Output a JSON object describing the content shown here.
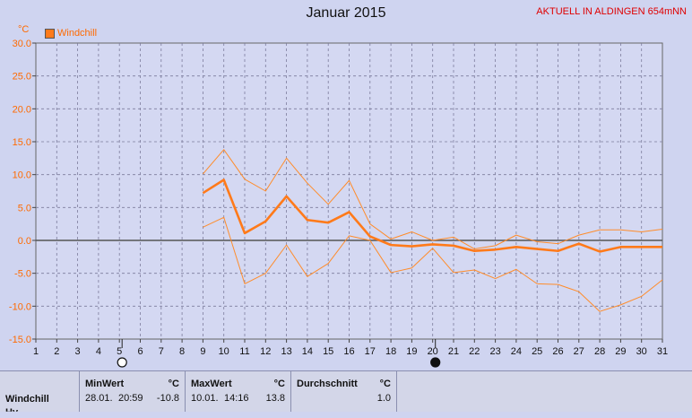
{
  "chart_data": {
    "type": "line",
    "title": "Januar 2015",
    "station": "AKTUELL IN ALDINGEN 654mNN",
    "unit": "°C",
    "ylim": [
      -15,
      30
    ],
    "yticks": [
      "30.0",
      "25.0",
      "20.0",
      "15.0",
      "10.0",
      "5.0",
      "0.0",
      "-5.0",
      "-10.0",
      "-15.0"
    ],
    "x": [
      1,
      2,
      3,
      4,
      5,
      6,
      7,
      8,
      9,
      10,
      11,
      12,
      13,
      14,
      15,
      16,
      17,
      18,
      19,
      20,
      21,
      22,
      23,
      24,
      25,
      26,
      27,
      28,
      29,
      30,
      31
    ],
    "legend": "Windchill",
    "series": [
      {
        "name": "Windchill",
        "role": "mean",
        "x": [
          9,
          10,
          11,
          12,
          13,
          14,
          15,
          16,
          17,
          18,
          19,
          20,
          21,
          22,
          23,
          24,
          25,
          26,
          27,
          28,
          29,
          30,
          31
        ],
        "values": [
          7.2,
          9.2,
          1.1,
          2.9,
          6.7,
          3.1,
          2.7,
          4.3,
          0.6,
          -0.7,
          -0.9,
          -0.6,
          -0.8,
          -1.6,
          -1.4,
          -1.0,
          -1.3,
          -1.6,
          -0.5,
          -1.7,
          -1.0,
          -1.0,
          -1.0
        ]
      },
      {
        "role": "max",
        "x": [
          9,
          10,
          11,
          12,
          13,
          14,
          15,
          16,
          17,
          18,
          19,
          20,
          21,
          22,
          23,
          24,
          25,
          26,
          27,
          28,
          29,
          30,
          31
        ],
        "values": [
          10.1,
          13.8,
          9.3,
          7.5,
          12.5,
          8.7,
          5.5,
          9.1,
          2.5,
          0.2,
          1.3,
          0.0,
          0.5,
          -1.3,
          -0.8,
          0.8,
          -0.2,
          -0.5,
          0.8,
          1.6,
          1.6,
          1.3,
          1.7
        ]
      },
      {
        "role": "min",
        "x": [
          9,
          10,
          11,
          12,
          13,
          14,
          15,
          16,
          17,
          18,
          19,
          20,
          21,
          22,
          23,
          24,
          25,
          26,
          27,
          28,
          29,
          30,
          31
        ],
        "values": [
          2.0,
          3.5,
          -6.6,
          -5.0,
          -0.7,
          -5.5,
          -3.5,
          0.7,
          0.0,
          -4.9,
          -4.2,
          -1.2,
          -4.9,
          -4.5,
          -5.8,
          -4.4,
          -6.6,
          -6.7,
          -7.8,
          -10.8,
          -9.8,
          -8.5,
          -6.0
        ]
      }
    ],
    "moon_phases": [
      {
        "day": 5,
        "phase": "full"
      },
      {
        "day": 20,
        "phase": "new"
      }
    ],
    "grid": true
  },
  "stats": {
    "row_label": "Windchill",
    "row_label_2": "Hy...",
    "min": {
      "header": "MinWert",
      "unit": "°C",
      "date": "28.01.",
      "time": "20:59",
      "value": "-10.8"
    },
    "max": {
      "header": "MaxWert",
      "unit": "°C",
      "date": "10.01.",
      "time": "14:16",
      "value": "13.8"
    },
    "avg": {
      "header": "Durchschnitt",
      "unit": "°C",
      "value": "1.0"
    }
  },
  "colors": {
    "mean": "#ff7a1a",
    "band": "#ff8c2a",
    "grid": "#7c7c9c",
    "background": "#cfd4f0"
  }
}
